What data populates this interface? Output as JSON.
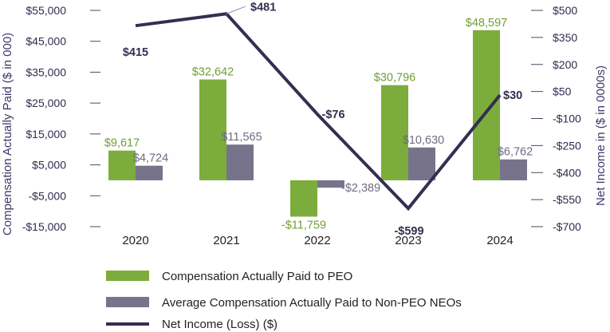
{
  "chart_data": {
    "type": "bar+line",
    "categories": [
      "2020",
      "2021",
      "2022",
      "2023",
      "2024"
    ],
    "series": [
      {
        "name": "Compensation Actually Paid to PEO",
        "type": "bar",
        "axis": "left",
        "values": [
          9617,
          32642,
          -11759,
          30796,
          48597
        ],
        "labels": [
          "$9,617",
          "$32,642",
          "-$11,759",
          "$30,796",
          "$48,597"
        ]
      },
      {
        "name": "Average Compensation Actually Paid to Non-PEO NEOs",
        "type": "bar",
        "axis": "left",
        "values": [
          4724,
          11565,
          -2389,
          10630,
          6762
        ],
        "labels": [
          "$4,724",
          "$11,565",
          "-$2,389",
          "$10,630",
          "$6,762"
        ]
      },
      {
        "name": "Net Income (Loss) ($)",
        "type": "line",
        "axis": "right",
        "values": [
          415,
          481,
          -76,
          -599,
          30
        ],
        "labels": [
          "$415",
          "$481",
          "-$76",
          "-$599",
          "$30"
        ]
      }
    ],
    "left_axis": {
      "label": "Compensation Actually Paid ($ in 000)",
      "range": [
        -15000,
        55000
      ],
      "ticks": [
        55000,
        45000,
        35000,
        25000,
        15000,
        5000,
        -5000,
        -15000
      ],
      "tick_labels": [
        "$55,000",
        "$45,000",
        "$35,000",
        "$25,000",
        "$15,000",
        "$5,000",
        "-$5,000",
        "-$15,000"
      ]
    },
    "right_axis": {
      "label": "Net Income in ($ in 0000s)",
      "range": [
        -700,
        500
      ],
      "ticks": [
        500,
        350,
        200,
        50,
        -100,
        -250,
        -400,
        -550,
        -700
      ],
      "tick_labels": [
        "$500",
        "$350",
        "$200",
        "$50",
        "-$100",
        "-$250",
        "-$400",
        "-$550",
        "-$700"
      ]
    },
    "colors": {
      "peo": "#7cad3c",
      "neo": "#76738b",
      "net": "#322f51",
      "peo_label": "#6e9f35",
      "neo_label": "#6f6c82",
      "axis_text": "#2e2d4d"
    },
    "legend": [
      "Compensation Actually Paid to PEO",
      "Average Compensation Actually Paid to Non-PEO NEOs",
      "Net Income (Loss) ($)"
    ],
    "legend_position": "bottom"
  }
}
